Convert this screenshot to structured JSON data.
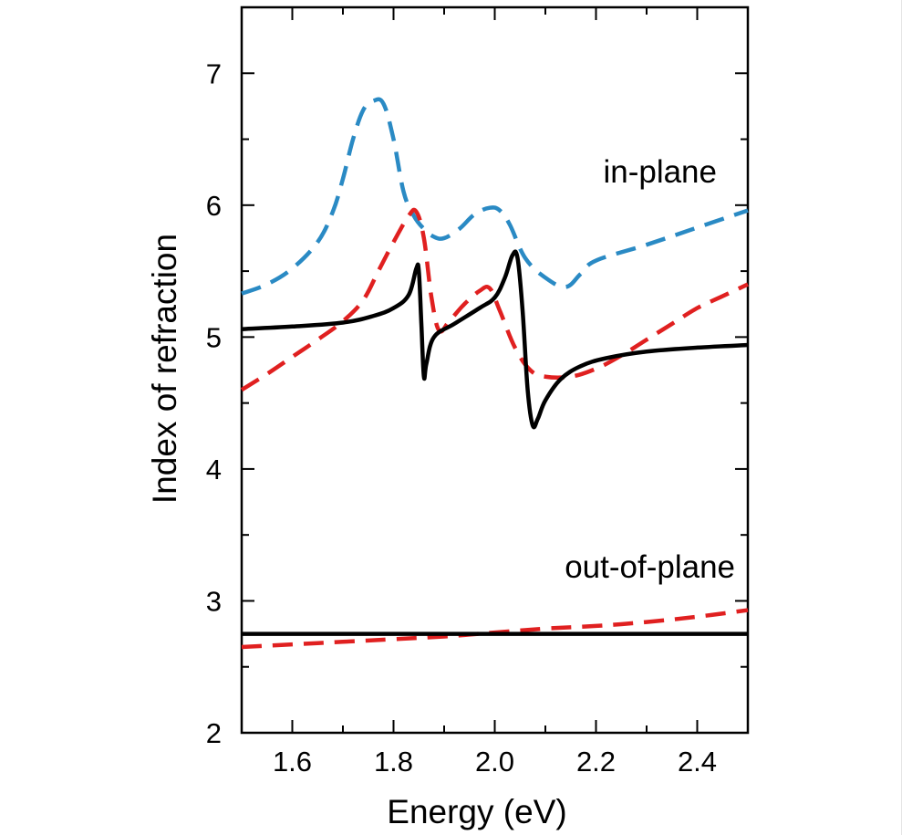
{
  "chart_data": {
    "type": "line",
    "xlabel": "Energy (eV)",
    "ylabel": "Index of refraction",
    "xlim": [
      1.5,
      2.5
    ],
    "ylim": [
      2,
      7.5
    ],
    "x_ticks": [
      1.6,
      1.8,
      2.0,
      2.2,
      2.4
    ],
    "x_tick_labels": [
      "1.6",
      "1.8",
      "2.0",
      "2.2",
      "2.4"
    ],
    "y_ticks": [
      2,
      3,
      4,
      5,
      6,
      7
    ],
    "y_tick_labels": [
      "2",
      "3",
      "4",
      "5",
      "6",
      "7"
    ],
    "annotations": [
      {
        "text": "in-plane",
        "x": 2.23,
        "y": 6.2
      },
      {
        "text": "out-of-plane",
        "x": 2.16,
        "y": 2.85
      }
    ],
    "series": [
      {
        "color": "#2a8ac4",
        "style": "dashed",
        "points": [
          [
            1.5,
            5.33
          ],
          [
            1.55,
            5.4
          ],
          [
            1.6,
            5.52
          ],
          [
            1.65,
            5.72
          ],
          [
            1.68,
            5.95
          ],
          [
            1.7,
            6.2
          ],
          [
            1.72,
            6.5
          ],
          [
            1.74,
            6.72
          ],
          [
            1.76,
            6.79
          ],
          [
            1.78,
            6.77
          ],
          [
            1.8,
            6.5
          ],
          [
            1.82,
            6.1
          ],
          [
            1.84,
            5.92
          ],
          [
            1.86,
            5.82
          ],
          [
            1.88,
            5.76
          ],
          [
            1.9,
            5.75
          ],
          [
            1.93,
            5.82
          ],
          [
            1.96,
            5.93
          ],
          [
            1.99,
            5.98
          ],
          [
            2.01,
            5.96
          ],
          [
            2.03,
            5.85
          ],
          [
            2.06,
            5.6
          ],
          [
            2.1,
            5.45
          ],
          [
            2.14,
            5.38
          ],
          [
            2.17,
            5.48
          ],
          [
            2.2,
            5.58
          ],
          [
            2.3,
            5.7
          ],
          [
            2.4,
            5.83
          ],
          [
            2.5,
            5.96
          ]
        ]
      },
      {
        "color": "#e02020",
        "style": "dashed",
        "points": [
          [
            1.5,
            4.6
          ],
          [
            1.55,
            4.72
          ],
          [
            1.6,
            4.85
          ],
          [
            1.65,
            4.98
          ],
          [
            1.7,
            5.12
          ],
          [
            1.74,
            5.28
          ],
          [
            1.77,
            5.5
          ],
          [
            1.8,
            5.72
          ],
          [
            1.83,
            5.92
          ],
          [
            1.845,
            5.95
          ],
          [
            1.86,
            5.75
          ],
          [
            1.875,
            5.3
          ],
          [
            1.89,
            5.05
          ],
          [
            1.91,
            5.12
          ],
          [
            1.94,
            5.25
          ],
          [
            1.97,
            5.35
          ],
          [
            1.99,
            5.37
          ],
          [
            2.01,
            5.2
          ],
          [
            2.04,
            4.92
          ],
          [
            2.07,
            4.75
          ],
          [
            2.1,
            4.7
          ],
          [
            2.15,
            4.7
          ],
          [
            2.2,
            4.76
          ],
          [
            2.25,
            4.86
          ],
          [
            2.3,
            4.98
          ],
          [
            2.35,
            5.1
          ],
          [
            2.4,
            5.22
          ],
          [
            2.45,
            5.31
          ],
          [
            2.5,
            5.4
          ]
        ]
      },
      {
        "color": "#000000",
        "style": "solid",
        "points": [
          [
            1.5,
            5.06
          ],
          [
            1.6,
            5.08
          ],
          [
            1.7,
            5.11
          ],
          [
            1.76,
            5.16
          ],
          [
            1.8,
            5.22
          ],
          [
            1.83,
            5.32
          ],
          [
            1.845,
            5.52
          ],
          [
            1.85,
            5.5
          ],
          [
            1.855,
            5.1
          ],
          [
            1.86,
            4.7
          ],
          [
            1.865,
            4.8
          ],
          [
            1.88,
            5.0
          ],
          [
            1.92,
            5.1
          ],
          [
            1.97,
            5.22
          ],
          [
            2.0,
            5.3
          ],
          [
            2.02,
            5.45
          ],
          [
            2.035,
            5.62
          ],
          [
            2.045,
            5.6
          ],
          [
            2.055,
            5.2
          ],
          [
            2.065,
            4.6
          ],
          [
            2.075,
            4.33
          ],
          [
            2.085,
            4.38
          ],
          [
            2.1,
            4.52
          ],
          [
            2.13,
            4.68
          ],
          [
            2.17,
            4.78
          ],
          [
            2.22,
            4.84
          ],
          [
            2.3,
            4.89
          ],
          [
            2.4,
            4.92
          ],
          [
            2.5,
            4.94
          ]
        ]
      },
      {
        "color": "#e02020",
        "style": "dashed",
        "points": [
          [
            1.5,
            2.65
          ],
          [
            1.6,
            2.67
          ],
          [
            1.7,
            2.69
          ],
          [
            1.8,
            2.71
          ],
          [
            1.9,
            2.73
          ],
          [
            2.0,
            2.76
          ],
          [
            2.1,
            2.79
          ],
          [
            2.2,
            2.81
          ],
          [
            2.3,
            2.84
          ],
          [
            2.4,
            2.88
          ],
          [
            2.5,
            2.93
          ]
        ]
      },
      {
        "color": "#000000",
        "style": "solid",
        "points": [
          [
            1.5,
            2.75
          ],
          [
            2.5,
            2.75
          ]
        ]
      }
    ]
  }
}
